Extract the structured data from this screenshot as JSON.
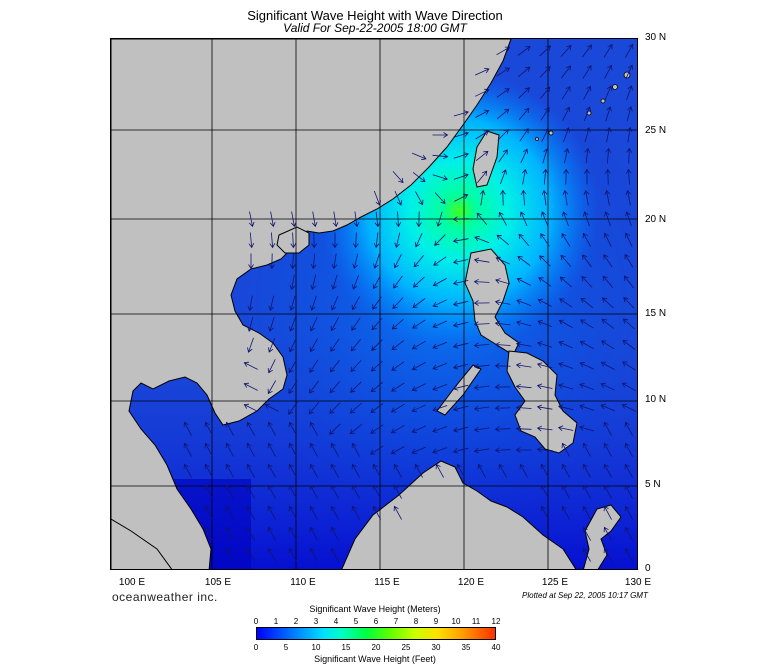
{
  "title": "Significant Wave Height with Wave Direction",
  "subtitle": "Valid For Sep-22-2005 18:00 GMT",
  "brand": "oceanweather inc.",
  "plotted": "Plotted at Sep 22, 2005 10:17 GMT",
  "lat_labels": [
    "30 N",
    "25 N",
    "20 N",
    "15 N",
    "10 N",
    "5 N",
    "0"
  ],
  "lon_labels": [
    "100 E",
    "105 E",
    "110 E",
    "115 E",
    "120 E",
    "125 E",
    "130 E"
  ],
  "colorbar": {
    "title_meters": "Significant Wave Height (Meters)",
    "title_feet": "Significant Wave Height (Feet)",
    "ticks_meters": [
      "0",
      "1",
      "2",
      "3",
      "4",
      "5",
      "6",
      "7",
      "8",
      "9",
      "10",
      "11",
      "12"
    ],
    "ticks_feet": [
      "0",
      "5",
      "10",
      "15",
      "20",
      "25",
      "30",
      "35",
      "40"
    ]
  },
  "colors": {
    "land": "#c0c0c0",
    "ocean_low": "#0000ff",
    "ocean_mid": "#00a0ff",
    "ocean_peak": "#00ff40",
    "coast": "#000000"
  },
  "storm_center": {
    "lon": 119.5,
    "lat": 20.8,
    "peak_wave_height_m": 7
  }
}
